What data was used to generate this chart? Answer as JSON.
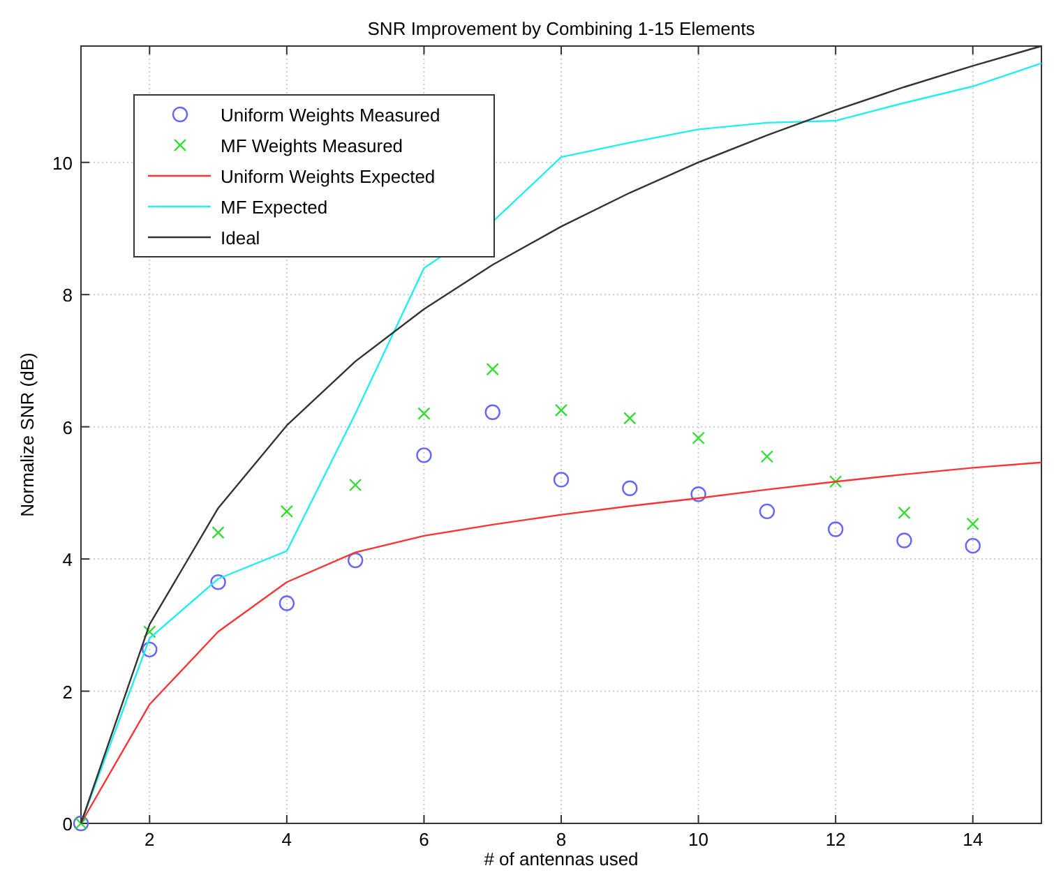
{
  "chart_data": {
    "type": "line",
    "title": "SNR Improvement by Combining 1-15 Elements",
    "xlabel": "# of antennas used",
    "ylabel": "Normalize SNR (dB)",
    "x": [
      1,
      2,
      3,
      4,
      5,
      6,
      7,
      8,
      9,
      10,
      11,
      12,
      13,
      14,
      15
    ],
    "series": [
      {
        "name": "Uniform Weights Measured",
        "type": "scatter",
        "marker": "circle",
        "color": "#6666ff",
        "x": [
          1,
          2,
          3,
          4,
          5,
          6,
          7,
          8,
          9,
          10,
          11,
          12,
          13,
          14
        ],
        "values": [
          0,
          2.63,
          3.65,
          3.33,
          3.98,
          5.57,
          6.22,
          5.2,
          5.07,
          4.98,
          4.72,
          4.45,
          4.28,
          4.2
        ]
      },
      {
        "name": "MF Weights Measured",
        "type": "scatter",
        "marker": "cross",
        "color": "#33dd33",
        "x": [
          1,
          2,
          3,
          4,
          5,
          6,
          7,
          8,
          9,
          10,
          11,
          12,
          13,
          14
        ],
        "values": [
          0,
          2.9,
          4.4,
          4.72,
          5.12,
          6.2,
          6.87,
          6.25,
          6.13,
          5.83,
          5.55,
          5.17,
          4.7,
          4.53
        ]
      },
      {
        "name": "Uniform Weights Expected",
        "color": "#ff3333",
        "values": [
          0,
          1.8,
          2.9,
          3.65,
          4.1,
          4.35,
          4.52,
          4.67,
          4.8,
          4.92,
          5.05,
          5.17,
          5.28,
          5.38,
          5.46
        ]
      },
      {
        "name": "MF Expected",
        "color": "#22eeee",
        "values": [
          0,
          2.8,
          3.7,
          4.12,
          6.2,
          8.4,
          9.1,
          10.08,
          10.3,
          10.5,
          10.6,
          10.63,
          10.9,
          11.15,
          11.5
        ]
      },
      {
        "name": "Ideal",
        "color": "#333333",
        "values": [
          0,
          3.01,
          4.77,
          6.02,
          6.99,
          7.78,
          8.45,
          9.03,
          9.54,
          10,
          10.41,
          10.79,
          11.14,
          11.46,
          11.76
        ]
      }
    ],
    "xlim": [
      1,
      15
    ],
    "xticks": [
      2,
      4,
      6,
      8,
      10,
      12,
      14
    ],
    "ylim": [
      0,
      11.76
    ],
    "yticks": [
      0,
      2,
      4,
      6,
      8,
      10
    ],
    "grid": true,
    "legend": "top left",
    "line_style": "solid"
  }
}
